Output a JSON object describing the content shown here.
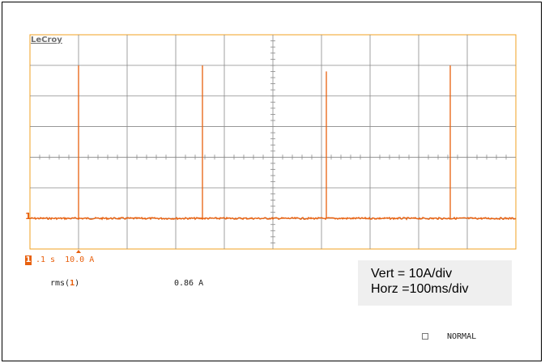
{
  "scope": {
    "brand": "LeCroy",
    "trace_color": "#e8600e",
    "grid_color": "#8a8a8a",
    "graticule_border_color": "#f0a020",
    "channel": {
      "marker": "1",
      "badge": "1",
      "timebase_text": ".1 s  10.0 A"
    },
    "measurement": {
      "label_prefix": "rms(",
      "label_channel": "1",
      "label_suffix": ")",
      "value": "0.86 A"
    },
    "info": {
      "vertical": "Vert = 10A/div",
      "horizontal": "Horz =100ms/div"
    },
    "trigger_mode": "NORMAL"
  },
  "chart_data": {
    "type": "line",
    "title": "",
    "xlabel": "",
    "ylabel": "",
    "x_units": "ms",
    "y_units": "A",
    "xlim": [
      0,
      1000
    ],
    "ylim": [
      -10,
      60
    ],
    "grid": true,
    "x_divisions": 10,
    "y_divisions": 7,
    "baseline": 0,
    "spikes": [
      {
        "x": 100,
        "peak": 50
      },
      {
        "x": 355,
        "peak": 50
      },
      {
        "x": 610,
        "peak": 48
      },
      {
        "x": 865,
        "peak": 50
      }
    ],
    "series": [
      {
        "values_description_free": true
      }
    ]
  }
}
